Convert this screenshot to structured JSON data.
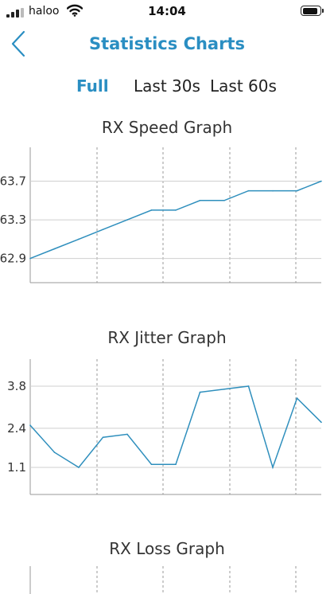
{
  "status_bar": {
    "carrier": "haloo",
    "time": "14:04",
    "signal_bars": 3,
    "wifi": "wifi-icon",
    "battery_level": 0.9
  },
  "nav": {
    "back_icon": "chevron-left-icon",
    "title": "Statistics Charts"
  },
  "segments": {
    "active": "Full",
    "items": [
      "Full",
      "Last 30s",
      "Last 60s"
    ]
  },
  "colors": {
    "accent": "#2a8ec2",
    "line": "#2f8fbd",
    "grid": "#cfcfcf"
  },
  "chart_data": [
    {
      "type": "line",
      "title": "RX Speed Graph",
      "xlabel": "",
      "ylabel": "",
      "yticks": [
        62.9,
        63.3,
        63.7
      ],
      "ylim": [
        62.65,
        64.05
      ],
      "grid": "horizontal and vertical (dashed vertical)",
      "x": [
        0,
        1,
        2,
        3,
        4,
        5,
        6,
        7,
        8,
        9,
        10,
        11,
        12
      ],
      "values": [
        62.9,
        63.0,
        63.1,
        63.2,
        63.3,
        63.4,
        63.4,
        63.5,
        63.5,
        63.6,
        63.6,
        63.6,
        63.7
      ]
    },
    {
      "type": "line",
      "title": "RX Jitter Graph",
      "xlabel": "",
      "ylabel": "",
      "yticks": [
        1.1,
        2.4,
        3.8
      ],
      "ylim": [
        0.2,
        4.7
      ],
      "grid": "horizontal and vertical (dashed vertical)",
      "x": [
        0,
        1,
        2,
        3,
        4,
        5,
        6,
        7,
        8,
        9,
        10,
        11,
        12
      ],
      "values": [
        2.5,
        1.6,
        1.1,
        2.1,
        2.2,
        1.2,
        1.2,
        3.6,
        3.7,
        3.8,
        1.1,
        3.4,
        2.6
      ]
    },
    {
      "type": "line",
      "title": "RX Loss Graph",
      "xlabel": "",
      "ylabel": "",
      "values": []
    }
  ]
}
